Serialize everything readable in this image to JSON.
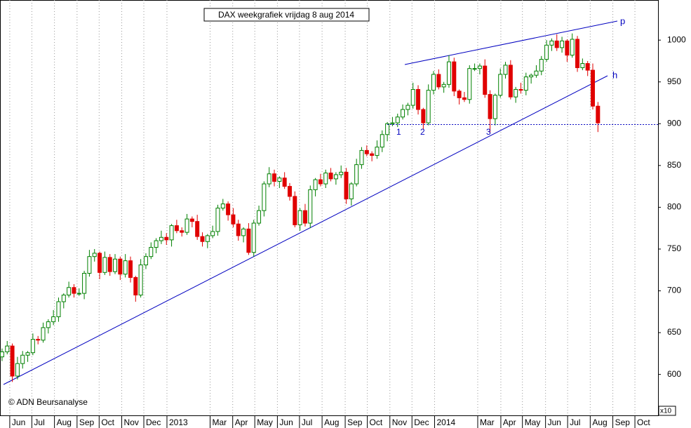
{
  "chart_data": {
    "type": "candlestick",
    "title": "DAX weekgrafiek vrijdag 8 aug 2014",
    "credit": "© ADN Beursanalyse",
    "scale_note": "x10",
    "annotations": [
      "p",
      "h",
      "1",
      "2",
      "3"
    ],
    "up_color": "#008000",
    "down_color": "#e00000",
    "line_color": "#0000c0",
    "level": 899,
    "open": [
      621,
      627,
      634,
      598,
      613,
      623,
      626,
      642,
      641,
      656,
      663,
      669,
      687,
      695,
      704,
      697,
      697,
      721,
      741,
      745,
      722,
      740,
      723,
      738,
      720,
      736,
      716,
      695,
      731,
      741,
      752,
      760,
      764,
      761,
      778,
      772,
      770,
      786,
      783,
      765,
      759,
      766,
      771,
      799,
      804,
      791,
      780,
      766,
      774,
      746,
      781,
      796,
      828,
      840,
      831,
      835,
      825,
      813,
      779,
      796,
      781,
      821,
      833,
      828,
      841,
      834,
      839,
      842,
      810,
      828,
      851,
      868,
      864,
      862,
      872,
      887,
      900,
      901,
      908,
      917,
      922,
      941,
      917,
      901,
      940,
      959,
      944,
      947,
      974,
      939,
      931,
      929,
      966,
      966,
      969,
      935,
      906,
      934,
      959,
      970,
      932,
      941,
      940,
      956,
      958,
      963,
      977,
      994,
      999,
      991,
      999,
      982,
      1001,
      967,
      972,
      964,
      921
    ],
    "high": [
      631,
      640,
      637,
      621,
      628,
      628,
      649,
      646,
      662,
      666,
      677,
      692,
      697,
      711,
      708,
      703,
      724,
      749,
      750,
      747,
      747,
      744,
      744,
      741,
      744,
      741,
      718,
      738,
      745,
      758,
      763,
      772,
      769,
      780,
      785,
      776,
      792,
      789,
      791,
      770,
      768,
      778,
      803,
      810,
      807,
      799,
      785,
      776,
      781,
      785,
      802,
      831,
      848,
      845,
      837,
      842,
      829,
      819,
      799,
      804,
      826,
      835,
      840,
      845,
      847,
      842,
      850,
      847,
      830,
      858,
      872,
      874,
      867,
      880,
      892,
      902,
      908,
      912,
      923,
      925,
      949,
      946,
      919,
      947,
      963,
      965,
      950,
      982,
      979,
      941,
      938,
      970,
      972,
      972,
      977,
      940,
      936,
      966,
      974,
      976,
      944,
      949,
      961,
      960,
      970,
      981,
      1000,
      1002,
      1007,
      1004,
      1001,
      1008,
      1005,
      978,
      975,
      972,
      926
    ],
    "low": [
      616,
      624,
      591,
      594,
      607,
      615,
      623,
      636,
      638,
      649,
      659,
      663,
      679,
      692,
      692,
      694,
      690,
      717,
      735,
      714,
      719,
      718,
      720,
      713,
      716,
      710,
      687,
      692,
      726,
      738,
      745,
      756,
      755,
      753,
      769,
      765,
      767,
      776,
      761,
      753,
      751,
      763,
      766,
      796,
      784,
      776,
      760,
      758,
      743,
      741,
      778,
      789,
      824,
      825,
      823,
      822,
      808,
      776,
      772,
      777,
      775,
      813,
      825,
      823,
      831,
      827,
      835,
      804,
      802,
      825,
      846,
      861,
      855,
      858,
      866,
      879,
      897,
      896,
      905,
      910,
      918,
      911,
      893,
      898,
      935,
      941,
      937,
      943,
      933,
      923,
      926,
      924,
      963,
      959,
      931,
      889,
      898,
      931,
      954,
      929,
      925,
      936,
      934,
      948,
      955,
      958,
      974,
      987,
      987,
      985,
      974,
      979,
      962,
      964,
      957,
      917,
      890
    ],
    "close": [
      627,
      634,
      598,
      613,
      623,
      626,
      642,
      641,
      656,
      663,
      669,
      687,
      695,
      704,
      697,
      697,
      721,
      741,
      745,
      722,
      740,
      723,
      738,
      720,
      736,
      716,
      695,
      731,
      741,
      752,
      760,
      764,
      761,
      778,
      772,
      770,
      786,
      783,
      765,
      759,
      766,
      771,
      799,
      804,
      791,
      780,
      766,
      774,
      746,
      781,
      796,
      828,
      840,
      831,
      835,
      825,
      813,
      779,
      796,
      781,
      821,
      833,
      828,
      841,
      834,
      839,
      842,
      810,
      828,
      851,
      868,
      864,
      862,
      872,
      887,
      900,
      901,
      908,
      917,
      922,
      941,
      917,
      901,
      940,
      959,
      944,
      947,
      974,
      939,
      931,
      929,
      966,
      966,
      969,
      935,
      906,
      934,
      959,
      970,
      932,
      941,
      940,
      956,
      958,
      963,
      977,
      994,
      999,
      991,
      999,
      982,
      1001,
      967,
      972,
      964,
      921,
      901
    ],
    "xlim": [
      -0.4,
      127.7
    ],
    "xticks": [
      {
        "value": 1.5,
        "label": "Jun"
      },
      {
        "value": 5.8,
        "label": "Jul"
      },
      {
        "value": 10.2,
        "label": "Aug"
      },
      {
        "value": 14.6,
        "label": "Sep"
      },
      {
        "value": 18.9,
        "label": "Oct"
      },
      {
        "value": 23.3,
        "label": "Nov"
      },
      {
        "value": 27.6,
        "label": "Dec"
      },
      {
        "value": 32.1,
        "label": "2013"
      },
      {
        "value": 40.5,
        "label": "Mar"
      },
      {
        "value": 44.9,
        "label": "Apr"
      },
      {
        "value": 49.2,
        "label": "May"
      },
      {
        "value": 53.6,
        "label": "Jun"
      },
      {
        "value": 57.9,
        "label": "Jul"
      },
      {
        "value": 62.3,
        "label": "Aug"
      },
      {
        "value": 66.8,
        "label": "Sep"
      },
      {
        "value": 71.1,
        "label": "Oct"
      },
      {
        "value": 75.5,
        "label": "Nov"
      },
      {
        "value": 79.8,
        "label": "Dec"
      },
      {
        "value": 84.2,
        "label": "2014"
      },
      {
        "value": 92.6,
        "label": "Mar"
      },
      {
        "value": 97.1,
        "label": "Apr"
      },
      {
        "value": 101.3,
        "label": "May"
      },
      {
        "value": 105.8,
        "label": "Jun"
      },
      {
        "value": 110.1,
        "label": "Jul"
      },
      {
        "value": 114.5,
        "label": "Aug"
      },
      {
        "value": 118.9,
        "label": "Sep"
      },
      {
        "value": 123.2,
        "label": "Oct"
      }
    ],
    "ylim": [
      551,
      1048
    ],
    "yticks": [
      600,
      650,
      700,
      750,
      800,
      850,
      900,
      950,
      1000
    ],
    "grid": true
  }
}
